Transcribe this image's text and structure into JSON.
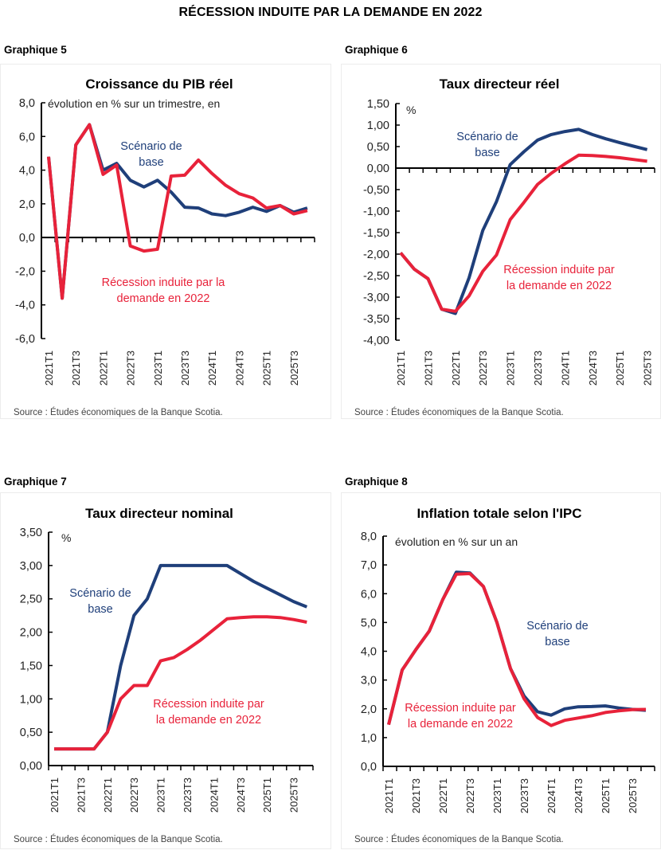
{
  "page_title": "RÉCESSION INDUITE PAR LA DEMANDE EN 2022",
  "colors": {
    "base": "#1f3f7a",
    "recession": "#e8223a",
    "axis": "#000000"
  },
  "chart_data": [
    {
      "id": "g5",
      "graph_label": "Graphique 5",
      "type": "line",
      "title": "Croissance du PIB réel",
      "unit_note": "évolution en % sur un trimestre, en",
      "source": "Source : Études économiques de la Banque Scotia.",
      "ylim": [
        -6.0,
        8.0
      ],
      "yticks": [
        "8,0",
        "6,0",
        "4,0",
        "2,0",
        "0,0",
        "-2,0",
        "-4,0",
        "-6,0"
      ],
      "ytick_values": [
        8,
        6,
        4,
        2,
        0,
        -2,
        -4,
        -6
      ],
      "x": [
        "2021T1",
        "2021T2",
        "2021T3",
        "2021T4",
        "2022T1",
        "2022T2",
        "2022T3",
        "2022T4",
        "2023T1",
        "2023T2",
        "2023T3",
        "2023T4",
        "2024T1",
        "2024T2",
        "2024T3",
        "2024T4",
        "2025T1",
        "2025T2",
        "2025T3",
        "2025T4"
      ],
      "xtick_labels": [
        "2021T1",
        "2021T3",
        "2022T1",
        "2022T3",
        "2023T1",
        "2023T3",
        "2024T1",
        "2024T3",
        "2025T1",
        "2025T3"
      ],
      "series": [
        {
          "name": "Scénario de base",
          "label_lines": [
            "Scénario de",
            "base"
          ],
          "color_key": "base",
          "values": [
            4.8,
            -3.6,
            5.5,
            6.7,
            4.0,
            4.4,
            3.4,
            3.0,
            3.4,
            2.7,
            1.8,
            1.75,
            1.4,
            1.3,
            1.5,
            1.8,
            1.55,
            1.9,
            1.5,
            1.75
          ]
        },
        {
          "name": "Récession induite par la demande en 2022",
          "label_lines": [
            "Récession induite par la",
            "demande en 2022"
          ],
          "color_key": "recession",
          "values": [
            4.8,
            -3.6,
            5.5,
            6.7,
            3.75,
            4.3,
            -0.5,
            -0.8,
            -0.7,
            3.65,
            3.7,
            4.6,
            3.8,
            3.1,
            2.6,
            2.35,
            1.75,
            1.9,
            1.4,
            1.6
          ]
        }
      ]
    },
    {
      "id": "g6",
      "graph_label": "Graphique 6",
      "type": "line",
      "title": "Taux directeur réel",
      "unit_note": "%",
      "source": "Source : Études économiques de la Banque Scotia.",
      "ylim": [
        -4.0,
        1.5
      ],
      "yticks": [
        "1,50",
        "1,00",
        "0,50",
        "0,00",
        "-0,50",
        "-1,00",
        "-1,50",
        "-2,00",
        "-2,50",
        "-3,00",
        "-3,50",
        "-4,00"
      ],
      "ytick_values": [
        1.5,
        1.0,
        0.5,
        0,
        -0.5,
        -1.0,
        -1.5,
        -2.0,
        -2.5,
        -3.0,
        -3.5,
        -4.0
      ],
      "x": [
        "2021T1",
        "2021T2",
        "2021T3",
        "2021T4",
        "2022T1",
        "2022T2",
        "2022T3",
        "2022T4",
        "2023T1",
        "2023T2",
        "2023T3",
        "2023T4",
        "2024T1",
        "2024T2",
        "2024T3",
        "2024T4",
        "2025T1",
        "2025T2",
        "2025T3"
      ],
      "xtick_labels": [
        "2021T1",
        "2021T3",
        "2022T1",
        "2022T3",
        "2023T1",
        "2023T3",
        "2024T1",
        "2024T3",
        "2025T1",
        "2025T3"
      ],
      "series": [
        {
          "name": "Scénario de base",
          "label_lines": [
            "Scénario de",
            "base"
          ],
          "color_key": "base",
          "values": [
            -1.97,
            -2.35,
            -2.57,
            -3.28,
            -3.38,
            -2.55,
            -1.45,
            -0.78,
            0.08,
            0.38,
            0.65,
            0.78,
            0.85,
            0.9,
            0.78,
            0.68,
            0.59,
            0.51,
            0.43
          ]
        },
        {
          "name": "Récession induite par la demande en 2022",
          "label_lines": [
            "Récession induite par",
            "la demande en 2022"
          ],
          "color_key": "recession",
          "values": [
            -1.97,
            -2.35,
            -2.57,
            -3.28,
            -3.33,
            -2.97,
            -2.4,
            -2.02,
            -1.2,
            -0.8,
            -0.38,
            -0.12,
            0.1,
            0.3,
            0.29,
            0.27,
            0.24,
            0.2,
            0.16
          ]
        }
      ]
    },
    {
      "id": "g7",
      "graph_label": "Graphique 7",
      "type": "line",
      "title": "Taux directeur nominal",
      "unit_note": "%",
      "source": "Source : Études économiques de la Banque Scotia.",
      "ylim": [
        0,
        3.5
      ],
      "yticks": [
        "3,50",
        "3,00",
        "2,50",
        "2,00",
        "1,50",
        "1,00",
        "0,50",
        "0,00"
      ],
      "ytick_values": [
        3.5,
        3.0,
        2.5,
        2.0,
        1.5,
        1.0,
        0.5,
        0
      ],
      "x": [
        "2021T1",
        "2021T2",
        "2021T3",
        "2021T4",
        "2022T1",
        "2022T2",
        "2022T3",
        "2022T4",
        "2023T1",
        "2023T2",
        "2023T3",
        "2023T4",
        "2024T1",
        "2024T2",
        "2024T3",
        "2024T4",
        "2025T1",
        "2025T2",
        "2025T3",
        "2025T4"
      ],
      "xtick_labels": [
        "2021T1",
        "2021T3",
        "2022T1",
        "2022T3",
        "2023T1",
        "2023T3",
        "2024T1",
        "2024T3",
        "2025T1",
        "2025T3"
      ],
      "series": [
        {
          "name": "Scénario de base",
          "label_lines": [
            "Scénario de",
            "base"
          ],
          "color_key": "base",
          "values": [
            0.25,
            0.25,
            0.25,
            0.25,
            0.5,
            1.5,
            2.25,
            2.5,
            3.0,
            3.0,
            3.0,
            3.0,
            3.0,
            3.0,
            2.88,
            2.76,
            2.66,
            2.56,
            2.46,
            2.38
          ]
        },
        {
          "name": "Récession induite par la demande en 2022",
          "label_lines": [
            "Récession induite par",
            "la demande en 2022"
          ],
          "color_key": "recession",
          "values": [
            0.25,
            0.25,
            0.25,
            0.25,
            0.5,
            1.0,
            1.2,
            1.2,
            1.57,
            1.62,
            1.74,
            1.88,
            2.04,
            2.2,
            2.22,
            2.23,
            2.23,
            2.22,
            2.19,
            2.15
          ]
        }
      ]
    },
    {
      "id": "g8",
      "graph_label": "Graphique 8",
      "type": "line",
      "title": "Inflation totale selon l'IPC",
      "unit_note": "évolution en % sur un an",
      "source": "Source : Études économiques de la Banque Scotia.",
      "ylim": [
        0,
        8.0
      ],
      "yticks": [
        "8,0",
        "7,0",
        "6,0",
        "5,0",
        "4,0",
        "3,0",
        "2,0",
        "1,0",
        "0,0"
      ],
      "ytick_values": [
        8,
        7,
        6,
        5,
        4,
        3,
        2,
        1,
        0
      ],
      "x": [
        "2021T1",
        "2021T2",
        "2021T3",
        "2021T4",
        "2022T1",
        "2022T2",
        "2022T3",
        "2022T4",
        "2023T1",
        "2023T2",
        "2023T3",
        "2023T4",
        "2024T1",
        "2024T2",
        "2024T3",
        "2024T4",
        "2025T1",
        "2025T2",
        "2025T3",
        "2025T4"
      ],
      "xtick_labels": [
        "2021T1",
        "2021T3",
        "2022T1",
        "2022T3",
        "2023T1",
        "2023T3",
        "2024T1",
        "2024T3",
        "2025T1",
        "2025T3"
      ],
      "series": [
        {
          "name": "Scénario de base",
          "label_lines": [
            "Scénario de",
            "base"
          ],
          "color_key": "base",
          "values": [
            1.45,
            3.35,
            4.05,
            4.7,
            5.8,
            6.75,
            6.72,
            6.25,
            5.0,
            3.4,
            2.45,
            1.9,
            1.78,
            2.0,
            2.07,
            2.08,
            2.1,
            2.03,
            1.98,
            1.95
          ]
        },
        {
          "name": "Récession induite par la demande en 2022",
          "label_lines": [
            "Récession induite par",
            "la demande en 2022"
          ],
          "color_key": "recession",
          "values": [
            1.45,
            3.35,
            4.05,
            4.7,
            5.8,
            6.68,
            6.7,
            6.25,
            5.0,
            3.4,
            2.35,
            1.7,
            1.42,
            1.6,
            1.68,
            1.76,
            1.87,
            1.93,
            1.97,
            1.98
          ]
        }
      ]
    }
  ]
}
